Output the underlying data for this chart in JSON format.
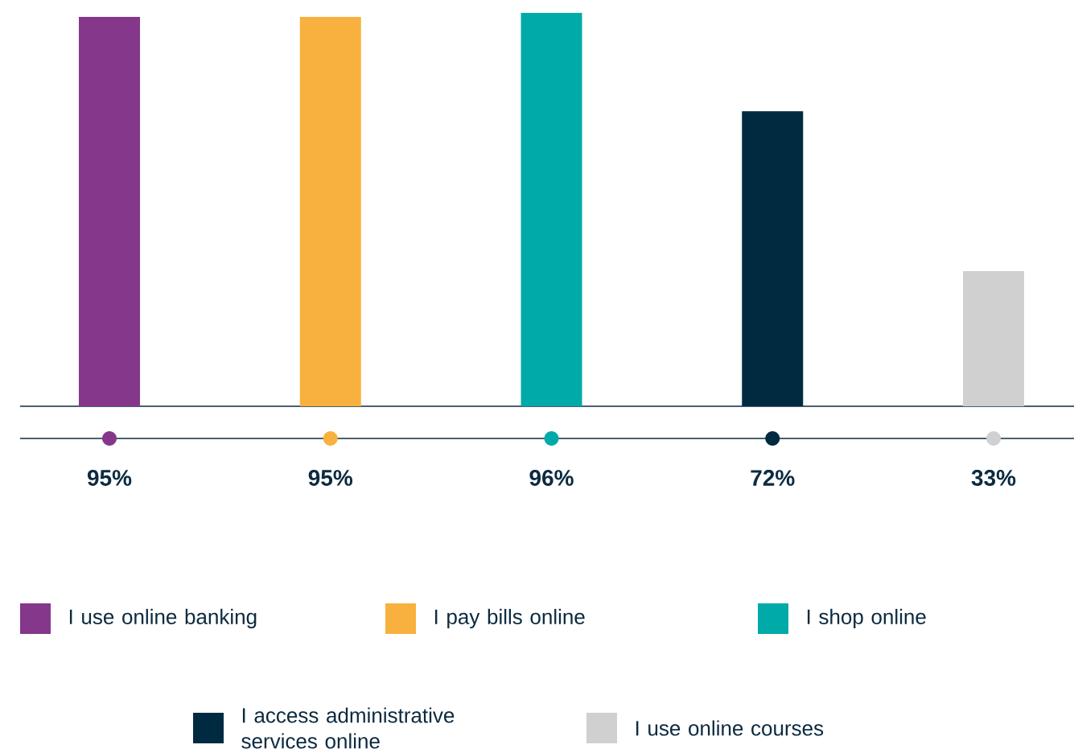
{
  "chart_data": {
    "type": "bar",
    "stacked": true,
    "legend": "bottom",
    "categories": [
      null,
      null,
      null,
      null,
      null
    ],
    "series": [
      {
        "name": "I use online banking",
        "color": "#84378b",
        "values": [
          95,
          null,
          null,
          null,
          null
        ],
        "value_labels": [
          "95%",
          null,
          null,
          null,
          null
        ]
      },
      {
        "name": "I pay bills online",
        "color": "#f8b13e",
        "values": [
          null,
          95,
          null,
          null,
          null
        ],
        "value_labels": [
          null,
          "95%",
          null,
          null,
          null
        ]
      },
      {
        "name": "I shop online",
        "color": "#00aaa9",
        "values": [
          null,
          null,
          96,
          null,
          null
        ],
        "value_labels": [
          null,
          null,
          "96%",
          null,
          null
        ]
      },
      {
        "name": "I access administrative services online",
        "color": "#002a40",
        "values": [
          null,
          null,
          null,
          72,
          null
        ],
        "value_labels": [
          null,
          null,
          null,
          "72%",
          null
        ]
      },
      {
        "name": "I use online courses",
        "color": "#d0d0d0",
        "values": [
          null,
          null,
          null,
          null,
          33
        ],
        "value_labels": [
          null,
          null,
          null,
          null,
          "33%"
        ]
      }
    ]
  }
}
